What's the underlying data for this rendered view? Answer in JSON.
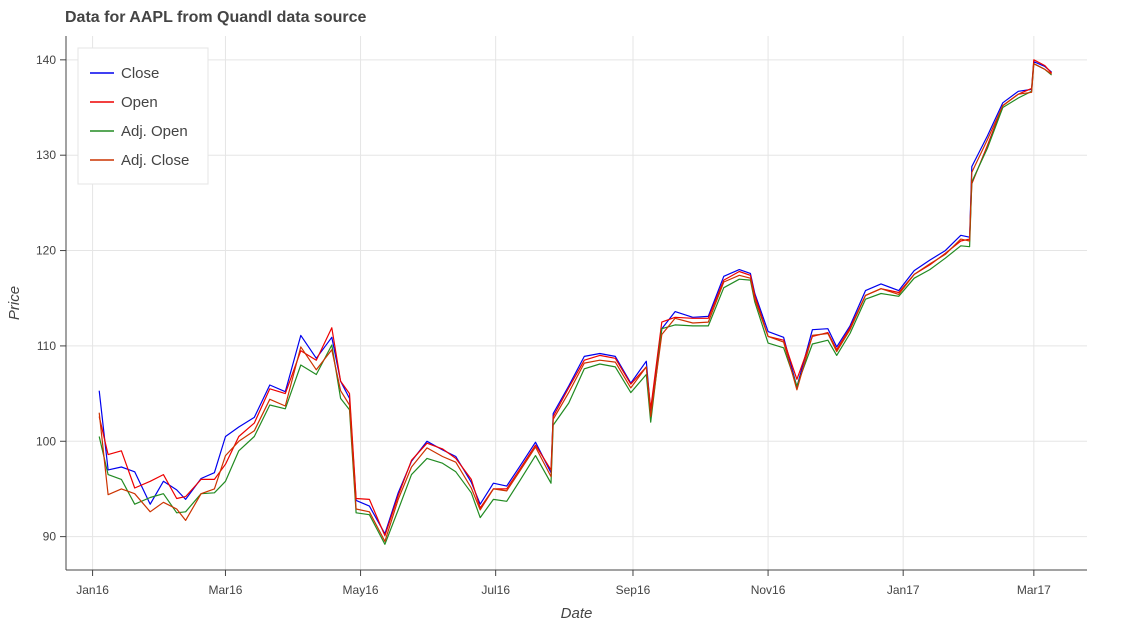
{
  "chart_data": {
    "type": "line",
    "title": "Data for AAPL from Quandl data source",
    "xlabel": "Date",
    "ylabel": "Price",
    "xlim": [
      "2015-12-20",
      "2017-03-25"
    ],
    "ylim": [
      86.5,
      142.5
    ],
    "grid": true,
    "legend_position": "top-left",
    "x_ticks": [
      {
        "date": "2016-01-01",
        "label": "Jan16"
      },
      {
        "date": "2016-03-01",
        "label": "Mar16"
      },
      {
        "date": "2016-05-01",
        "label": "May16"
      },
      {
        "date": "2016-07-01",
        "label": "Jul16"
      },
      {
        "date": "2016-09-01",
        "label": "Sep16"
      },
      {
        "date": "2016-11-01",
        "label": "Nov16"
      },
      {
        "date": "2017-01-01",
        "label": "Jan17"
      },
      {
        "date": "2017-03-01",
        "label": "Mar17"
      }
    ],
    "y_ticks": [
      90,
      100,
      110,
      120,
      130,
      140
    ],
    "x": [
      "2016-01-04",
      "2016-01-08",
      "2016-01-14",
      "2016-01-20",
      "2016-01-27",
      "2016-02-02",
      "2016-02-08",
      "2016-02-12",
      "2016-02-19",
      "2016-02-25",
      "2016-03-01",
      "2016-03-07",
      "2016-03-14",
      "2016-03-21",
      "2016-03-28",
      "2016-04-04",
      "2016-04-11",
      "2016-04-18",
      "2016-04-22",
      "2016-04-26",
      "2016-04-29",
      "2016-05-05",
      "2016-05-12",
      "2016-05-18",
      "2016-05-24",
      "2016-05-31",
      "2016-06-07",
      "2016-06-13",
      "2016-06-20",
      "2016-06-24",
      "2016-06-30",
      "2016-07-06",
      "2016-07-12",
      "2016-07-19",
      "2016-07-26",
      "2016-07-27",
      "2016-08-03",
      "2016-08-10",
      "2016-08-17",
      "2016-08-24",
      "2016-08-31",
      "2016-09-07",
      "2016-09-09",
      "2016-09-14",
      "2016-09-20",
      "2016-09-28",
      "2016-10-05",
      "2016-10-12",
      "2016-10-19",
      "2016-10-24",
      "2016-10-26",
      "2016-11-01",
      "2016-11-08",
      "2016-11-14",
      "2016-11-21",
      "2016-11-28",
      "2016-12-02",
      "2016-12-08",
      "2016-12-15",
      "2016-12-22",
      "2016-12-30",
      "2017-01-06",
      "2017-01-13",
      "2017-01-20",
      "2017-01-27",
      "2017-01-31",
      "2017-02-01",
      "2017-02-08",
      "2017-02-15",
      "2017-02-22",
      "2017-02-28",
      "2017-03-01",
      "2017-03-06",
      "2017-03-09"
    ],
    "series": [
      {
        "name": "Close",
        "color": "#0000ee",
        "values": [
          105.3,
          97.0,
          97.3,
          96.8,
          93.4,
          95.8,
          94.9,
          93.9,
          96.1,
          96.7,
          100.5,
          101.5,
          102.5,
          105.9,
          105.2,
          111.1,
          108.7,
          110.9,
          106.3,
          104.5,
          93.8,
          93.2,
          90.3,
          94.6,
          97.9,
          100.0,
          99.1,
          98.4,
          95.7,
          93.4,
          95.6,
          95.3,
          97.4,
          99.9,
          96.7,
          102.9,
          105.8,
          108.9,
          109.2,
          108.9,
          106.1,
          108.4,
          103.1,
          111.8,
          113.6,
          113.0,
          113.1,
          117.3,
          118.0,
          117.6,
          115.5,
          111.5,
          110.9,
          105.7,
          111.7,
          111.8,
          109.9,
          112.1,
          115.8,
          116.5,
          115.8,
          117.9,
          119.0,
          120.0,
          121.6,
          121.4,
          128.8,
          132.0,
          135.5,
          136.7,
          136.9,
          139.8,
          139.3,
          138.7
        ]
      },
      {
        "name": "Open",
        "color": "#ee0000",
        "values": [
          102.6,
          98.6,
          99.0,
          95.1,
          95.8,
          96.5,
          94.0,
          94.2,
          96.0,
          96.0,
          97.6,
          100.5,
          101.9,
          105.5,
          105.0,
          109.5,
          108.5,
          111.9,
          106.3,
          105.0,
          94.0,
          93.9,
          90.1,
          94.3,
          98.0,
          99.8,
          99.2,
          98.2,
          96.0,
          93.0,
          95.0,
          95.0,
          97.1,
          99.6,
          97.0,
          102.6,
          105.6,
          108.5,
          109.0,
          108.7,
          106.0,
          107.8,
          103.4,
          112.5,
          113.0,
          112.9,
          112.9,
          116.9,
          117.8,
          117.4,
          115.3,
          111.0,
          110.6,
          106.5,
          111.0,
          111.4,
          109.6,
          111.9,
          115.3,
          116.0,
          115.6,
          117.5,
          118.5,
          119.7,
          121.0,
          121.2,
          127.0,
          131.0,
          135.2,
          136.4,
          137.0,
          140.0,
          139.4,
          138.6
        ]
      },
      {
        "name": "Adj. Open",
        "color": "#228b22",
        "values": [
          100.5,
          96.5,
          96.0,
          93.4,
          94.1,
          94.5,
          92.5,
          92.6,
          94.5,
          94.6,
          95.8,
          99.0,
          100.5,
          103.8,
          103.4,
          108.0,
          107.0,
          110.1,
          104.5,
          103.3,
          92.5,
          92.3,
          89.2,
          92.8,
          96.5,
          98.2,
          97.7,
          96.8,
          94.6,
          92.0,
          93.9,
          93.7,
          95.9,
          98.5,
          95.6,
          101.7,
          104.0,
          107.6,
          108.1,
          107.8,
          105.1,
          107.0,
          102.0,
          111.8,
          112.2,
          112.1,
          112.1,
          116.1,
          117.0,
          116.9,
          114.6,
          110.3,
          109.8,
          105.8,
          110.2,
          110.6,
          109.0,
          111.3,
          114.9,
          115.5,
          115.2,
          117.1,
          118.0,
          119.2,
          120.5,
          120.4,
          127.2,
          130.7,
          135.0,
          136.0,
          136.7,
          139.6,
          139.0,
          138.4
        ]
      },
      {
        "name": "Adj. Close",
        "color": "#cc3300",
        "values": [
          103.0,
          94.4,
          95.0,
          94.5,
          92.6,
          93.6,
          92.9,
          91.7,
          94.5,
          95.0,
          98.5,
          100.0,
          101.1,
          104.4,
          103.7,
          109.9,
          107.5,
          109.6,
          105.3,
          103.8,
          92.9,
          92.6,
          89.5,
          93.9,
          97.3,
          99.3,
          98.4,
          97.8,
          95.1,
          92.8,
          95.0,
          94.8,
          96.9,
          99.4,
          96.3,
          102.3,
          105.1,
          108.2,
          108.5,
          108.3,
          105.6,
          107.8,
          102.6,
          111.2,
          112.9,
          112.4,
          112.5,
          116.7,
          117.4,
          117.1,
          114.9,
          111.0,
          110.4,
          105.4,
          111.1,
          111.3,
          109.4,
          111.7,
          115.3,
          116.0,
          115.4,
          117.5,
          118.6,
          119.6,
          121.2,
          121.0,
          128.2,
          131.6,
          135.2,
          136.4,
          136.6,
          139.6,
          139.0,
          138.5
        ]
      }
    ]
  }
}
